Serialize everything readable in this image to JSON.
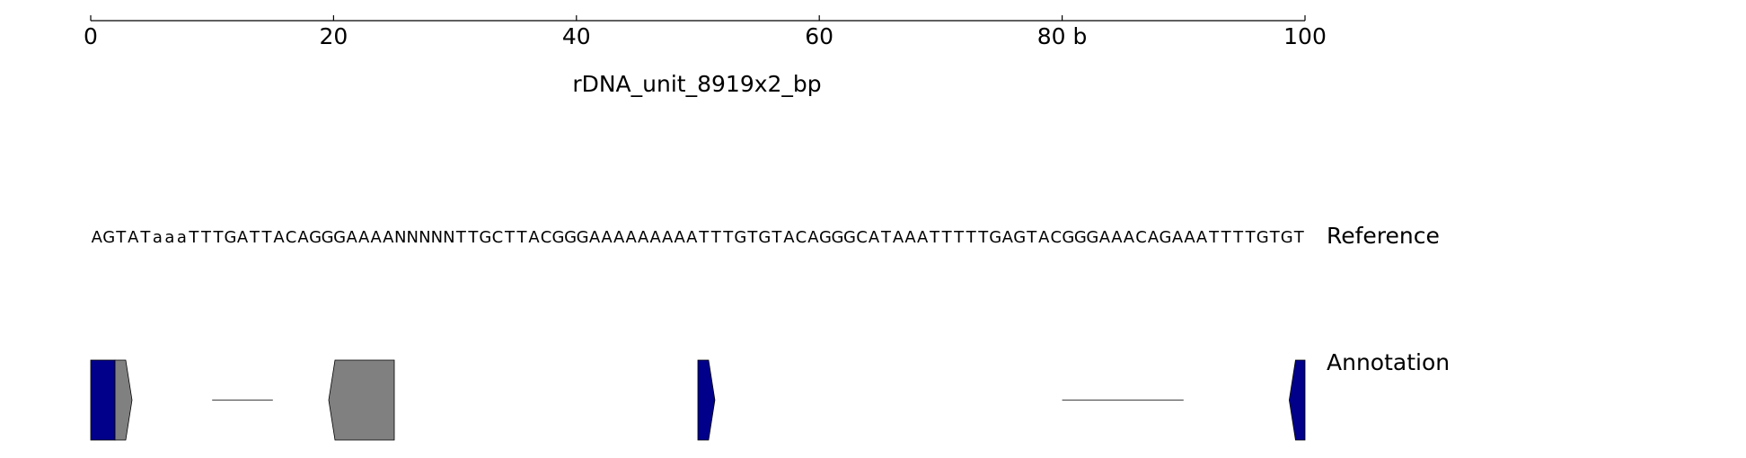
{
  "chart_data": {
    "type": "track",
    "xlabel": "rDNA_unit_8919x2_bp",
    "xlim": [
      0,
      100
    ],
    "xticks": [
      0,
      20,
      40,
      60,
      {
        "value": 80,
        "label": "80 b"
      },
      100
    ],
    "reference": {
      "label": "Reference",
      "sequence": "AGTATaaaTTTGATTACAGGGAAAANNNNNTTGCTTACGGGAAAAAAAAATTTGTGTACAGGGCATAAATTTTTGAGTACGGGAAACAGAAATTTTGTGT",
      "base_colors": {
        "A": "#ff0000",
        "a": "#ff0000",
        "G": "#0000ff",
        "T": "#008000",
        "C": "#000000",
        "N": "#808080"
      }
    },
    "annotation": {
      "label": "Annotation",
      "features": [
        {
          "kind": "box",
          "start": 0,
          "end": 2,
          "color": "#00008b"
        },
        {
          "kind": "arrow",
          "start": 2,
          "end": 3.4,
          "strand": "+",
          "color": "#808080"
        },
        {
          "kind": "line",
          "start": 10,
          "end": 15,
          "color": "#000000"
        },
        {
          "kind": "arrow",
          "start": 19.6,
          "end": 25,
          "strand": "-",
          "color": "#808080"
        },
        {
          "kind": "arrow",
          "start": 50,
          "end": 51.4,
          "strand": "+",
          "color": "#00008b"
        },
        {
          "kind": "line",
          "start": 80,
          "end": 90,
          "color": "#000000"
        },
        {
          "kind": "arrow",
          "start": 98.7,
          "end": 100,
          "strand": "-",
          "color": "#00008b"
        }
      ]
    }
  }
}
